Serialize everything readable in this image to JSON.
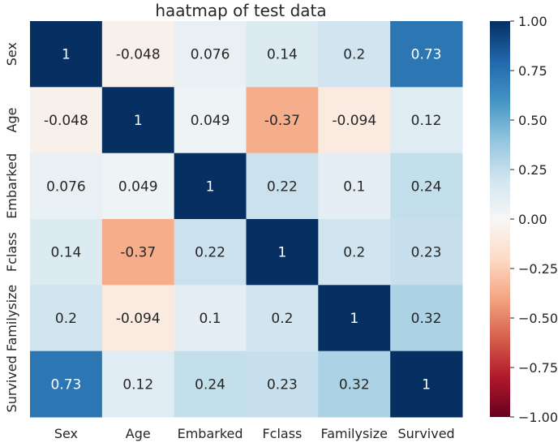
{
  "chart_data": {
    "type": "heatmap",
    "title": "haatmap of test data",
    "xlabel": "",
    "ylabel": "",
    "x_categories": [
      "Sex",
      "Age",
      "Embarked",
      "Fclass",
      "Familysize",
      "Survived"
    ],
    "y_categories": [
      "Sex",
      "Age",
      "Embarked",
      "Fclass",
      "Familysize",
      "Survived"
    ],
    "values": [
      [
        1,
        -0.048,
        0.076,
        0.14,
        0.2,
        0.73
      ],
      [
        -0.048,
        1,
        0.049,
        -0.37,
        -0.094,
        0.12
      ],
      [
        0.076,
        0.049,
        1,
        0.22,
        0.1,
        0.24
      ],
      [
        0.14,
        -0.37,
        0.22,
        1,
        0.2,
        0.23
      ],
      [
        0.2,
        -0.094,
        0.1,
        0.2,
        1,
        0.32
      ],
      [
        0.73,
        0.12,
        0.24,
        0.23,
        0.32,
        1
      ]
    ],
    "value_labels": [
      [
        "1",
        "-0.048",
        "0.076",
        "0.14",
        "0.2",
        "0.73"
      ],
      [
        "-0.048",
        "1",
        "0.049",
        "-0.37",
        "-0.094",
        "0.12"
      ],
      [
        "0.076",
        "0.049",
        "1",
        "0.22",
        "0.1",
        "0.24"
      ],
      [
        "0.14",
        "-0.37",
        "0.22",
        "1",
        "0.2",
        "0.23"
      ],
      [
        "0.2",
        "-0.094",
        "0.1",
        "0.2",
        "1",
        "0.32"
      ],
      [
        "0.73",
        "0.12",
        "0.24",
        "0.23",
        "0.32",
        "1"
      ]
    ],
    "colorbar": {
      "range": [
        -1.0,
        1.0
      ],
      "ticks": [
        1.0,
        0.75,
        0.5,
        0.25,
        0.0,
        -0.25,
        -0.5,
        -0.75,
        -1.0
      ],
      "tick_labels": [
        "1.00",
        "0.75",
        "0.50",
        "0.25",
        "0.00",
        "−0.25",
        "−0.50",
        "−0.75",
        "−1.00"
      ]
    },
    "colormap": "RdBu",
    "grid": false
  }
}
